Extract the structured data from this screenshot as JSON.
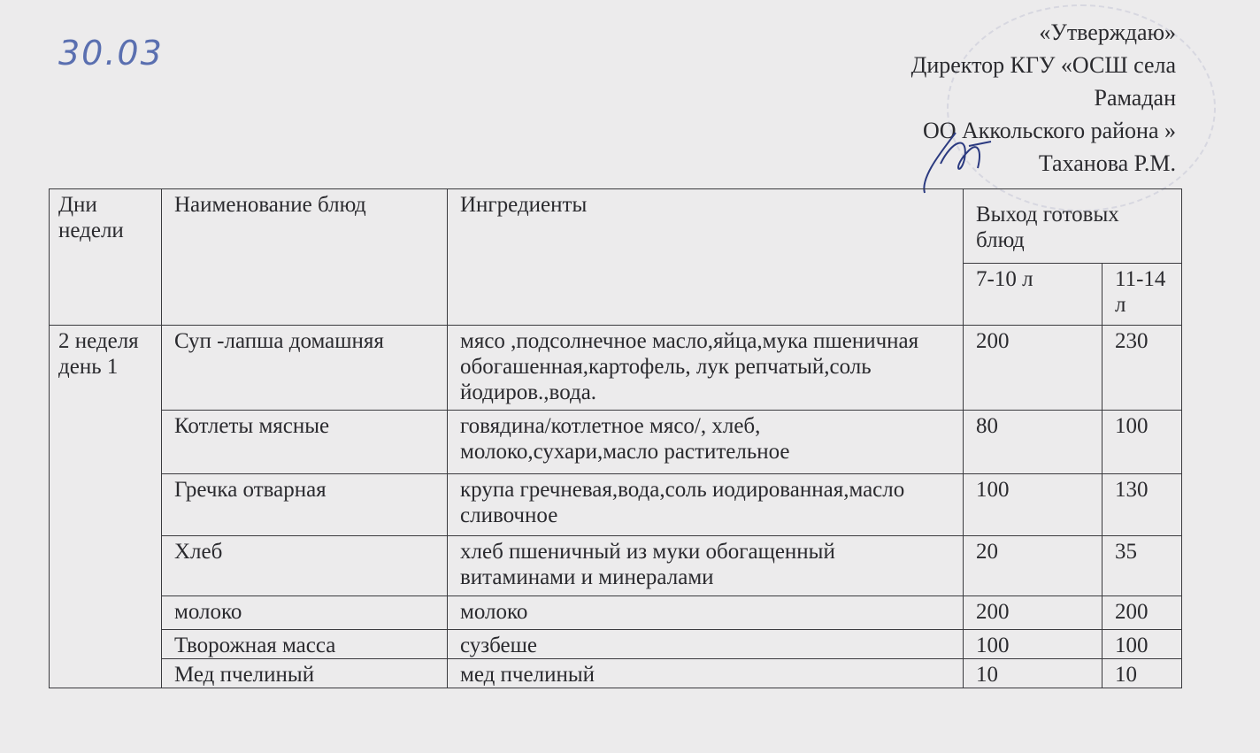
{
  "handwritten_date": "30.03",
  "approval": {
    "lines": [
      "«Утверждаю»",
      "Директор КГУ «ОСШ села",
      "Рамадан",
      "ОО Аккольского района »",
      "Таханова Р.М."
    ]
  },
  "table": {
    "headers": {
      "days": "Дни недели",
      "dish": "Наименование блюд",
      "ingredients": "Ингредиенты",
      "yield": "Выход готовых блюд",
      "age1": "7-10 л",
      "age2": "11-14 л"
    },
    "day_label": "2 неделя день 1",
    "rows": [
      {
        "dish": "Суп -лапша домашняя",
        "ingredients": "мясо ,подсолнечное масло,яйца,мука пшеничная обогашенная,картофель, лук репчатый,соль йодиров.,вода.",
        "y1": "200",
        "y2": "230"
      },
      {
        "dish": "Котлеты мясные",
        "ingredients": "говядина/котлетное мясо/, хлеб, молоко,сухари,масло растительное",
        "y1": "80",
        "y2": "100"
      },
      {
        "dish": "Гречка отварная",
        "ingredients": "крупа гречневая,вода,соль иодированная,масло сливочное",
        "y1": "100",
        "y2": "130"
      },
      {
        "dish": "Хлеб",
        "ingredients": "хлеб пшеничный  из муки обогащенный витаминами и минералами",
        "y1": "20",
        "y2": "35"
      },
      {
        "dish": "молоко",
        "ingredients": "молоко",
        "y1": "200",
        "y2": "200"
      },
      {
        "dish": "Творожная масса",
        "ingredients": "сузбеше",
        "y1": "100",
        "y2": "100"
      },
      {
        "dish": "Мед пчелиный",
        "ingredients": "мед пчелиный",
        "y1": "10",
        "y2": "10"
      }
    ]
  }
}
